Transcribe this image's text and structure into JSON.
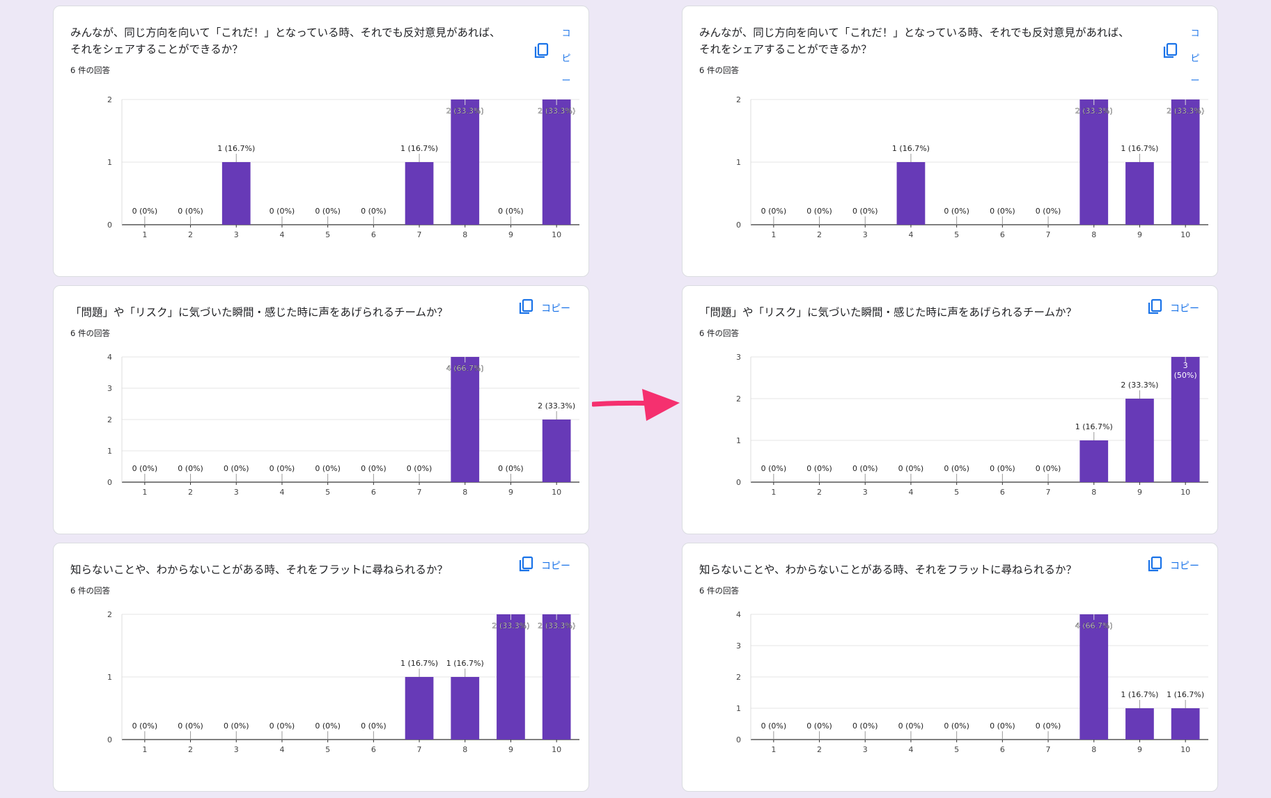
{
  "colors": {
    "bar": "#673ab7",
    "accent": "#1a73e8",
    "arrow": "#f5306f"
  },
  "copy_label": "コピー",
  "copy_label_narrow": [
    "コ",
    "ピ",
    "ー"
  ],
  "copy_icon": "copy-icon",
  "arrow_icon": "arrow-right-icon",
  "cards": [
    {
      "question": "みんなが、同じ方向を向いて「これだ！」となっている時、それでも反対意見があれば、\nそれをシェアすることができるか？",
      "responses": "6 件の回答",
      "copy_narrow": true,
      "chart_data": {
        "type": "bar",
        "categories": [
          "1",
          "2",
          "3",
          "4",
          "5",
          "6",
          "7",
          "8",
          "9",
          "10"
        ],
        "values": [
          0,
          0,
          1,
          0,
          0,
          0,
          1,
          2,
          0,
          2
        ],
        "labels": [
          "0 (0%)",
          "0 (0%)",
          "1 (16.7%)",
          "0 (0%)",
          "0 (0%)",
          "0 (0%)",
          "1 (16.7%)",
          "2 (33.3%)",
          "0 (0%)",
          "2 (33.3%)"
        ],
        "ylim": [
          0,
          2
        ],
        "yticks": [
          "0",
          "1",
          "2"
        ]
      }
    },
    {
      "question": "みんなが、同じ方向を向いて「これだ！」となっている時、それでも反対意見があれば、\nそれをシェアすることができるか？",
      "responses": "6 件の回答",
      "copy_narrow": true,
      "chart_data": {
        "type": "bar",
        "categories": [
          "1",
          "2",
          "3",
          "4",
          "5",
          "6",
          "7",
          "8",
          "9",
          "10"
        ],
        "values": [
          0,
          0,
          0,
          1,
          0,
          0,
          0,
          2,
          1,
          2
        ],
        "labels": [
          "0 (0%)",
          "0 (0%)",
          "0 (0%)",
          "1 (16.7%)",
          "0 (0%)",
          "0 (0%)",
          "0 (0%)",
          "2 (33.3%)",
          "1 (16.7%)",
          "2 (33.3%)"
        ],
        "ylim": [
          0,
          2
        ],
        "yticks": [
          "0",
          "1",
          "2"
        ]
      }
    },
    {
      "question": "「問題」や「リスク」に気づいた瞬間・感じた時に声をあげられるチームか？",
      "responses": "6 件の回答",
      "copy_narrow": false,
      "chart_data": {
        "type": "bar",
        "categories": [
          "1",
          "2",
          "3",
          "4",
          "5",
          "6",
          "7",
          "8",
          "9",
          "10"
        ],
        "values": [
          0,
          0,
          0,
          0,
          0,
          0,
          0,
          4,
          0,
          2
        ],
        "labels": [
          "0 (0%)",
          "0 (0%)",
          "0 (0%)",
          "0 (0%)",
          "0 (0%)",
          "0 (0%)",
          "0 (0%)",
          "4 (66.7%)",
          "0 (0%)",
          "2 (33.3%)"
        ],
        "ylim": [
          0,
          4
        ],
        "yticks": [
          "0",
          "1",
          "2",
          "3",
          "4"
        ]
      }
    },
    {
      "question": "「問題」や「リスク」に気づいた瞬間・感じた時に声をあげられるチームか？",
      "responses": "6 件の回答",
      "copy_narrow": false,
      "chart_data": {
        "type": "bar",
        "categories": [
          "1",
          "2",
          "3",
          "4",
          "5",
          "6",
          "7",
          "8",
          "9",
          "10"
        ],
        "values": [
          0,
          0,
          0,
          0,
          0,
          0,
          0,
          1,
          2,
          3
        ],
        "labels": [
          "0 (0%)",
          "0 (0%)",
          "0 (0%)",
          "0 (0%)",
          "0 (0%)",
          "0 (0%)",
          "0 (0%)",
          "1 (16.7%)",
          "2 (33.3%)",
          "3\n(50%)"
        ],
        "ylim": [
          0,
          3
        ],
        "yticks": [
          "0",
          "1",
          "2",
          "3"
        ]
      }
    },
    {
      "question": "知らないことや、わからないことがある時、それをフラットに尋ねられるか？",
      "responses": "6 件の回答",
      "copy_narrow": false,
      "chart_data": {
        "type": "bar",
        "categories": [
          "1",
          "2",
          "3",
          "4",
          "5",
          "6",
          "7",
          "8",
          "9",
          "10"
        ],
        "values": [
          0,
          0,
          0,
          0,
          0,
          0,
          1,
          1,
          2,
          2
        ],
        "labels": [
          "0 (0%)",
          "0 (0%)",
          "0 (0%)",
          "0 (0%)",
          "0 (0%)",
          "0 (0%)",
          "1 (16.7%)",
          "1 (16.7%)",
          "2 (33.3%)",
          "2 (33.3%)"
        ],
        "ylim": [
          0,
          2
        ],
        "yticks": [
          "0",
          "1",
          "2"
        ]
      }
    },
    {
      "question": "知らないことや、わからないことがある時、それをフラットに尋ねられるか？",
      "responses": "6 件の回答",
      "copy_narrow": false,
      "chart_data": {
        "type": "bar",
        "categories": [
          "1",
          "2",
          "3",
          "4",
          "5",
          "6",
          "7",
          "8",
          "9",
          "10"
        ],
        "values": [
          0,
          0,
          0,
          0,
          0,
          0,
          0,
          4,
          1,
          1
        ],
        "labels": [
          "0 (0%)",
          "0 (0%)",
          "0 (0%)",
          "0 (0%)",
          "0 (0%)",
          "0 (0%)",
          "0 (0%)",
          "4 (66.7%)",
          "1 (16.7%)",
          "1 (16.7%)"
        ],
        "ylim": [
          0,
          4
        ],
        "yticks": [
          "0",
          "1",
          "2",
          "3",
          "4"
        ]
      }
    }
  ]
}
